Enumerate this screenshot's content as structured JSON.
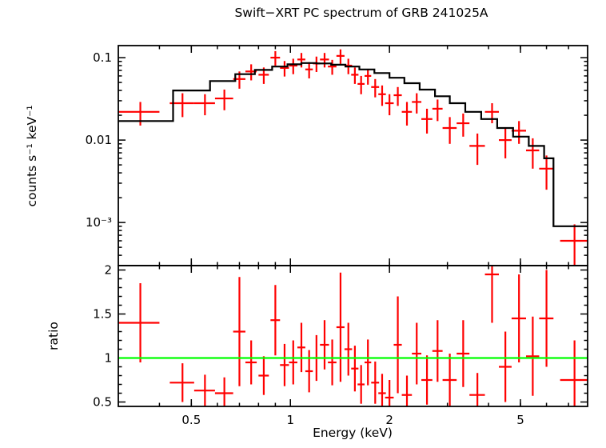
{
  "chart_data": [
    {
      "type": "scatter",
      "title": "Swift−XRT PC spectrum of GRB 241025A",
      "ylabel": "counts s⁻¹ keV⁻¹",
      "xscale": "log",
      "yscale": "log",
      "xlim": [
        0.3,
        8
      ],
      "ylim": [
        0.0003,
        0.14
      ],
      "grid": false,
      "legend": "none",
      "yticks": {
        "values": [
          0.001,
          0.01,
          0.1
        ],
        "labels": [
          "10⁻³",
          "0.01",
          "0.1"
        ]
      },
      "series": [
        {
          "name": "observed spectrum",
          "marker": "cross",
          "color": "#ff0000",
          "columns": [
            "x",
            "xerr",
            "y",
            "yerr"
          ],
          "points": [
            [
              0.35,
              0.05,
              0.022,
              0.007
            ],
            [
              0.47,
              0.04,
              0.028,
              0.009
            ],
            [
              0.55,
              0.04,
              0.028,
              0.008
            ],
            [
              0.63,
              0.04,
              0.032,
              0.009
            ],
            [
              0.7,
              0.03,
              0.055,
              0.013
            ],
            [
              0.76,
              0.03,
              0.068,
              0.015
            ],
            [
              0.83,
              0.03,
              0.062,
              0.014
            ],
            [
              0.9,
              0.03,
              0.1,
              0.02
            ],
            [
              0.96,
              0.03,
              0.075,
              0.016
            ],
            [
              1.02,
              0.03,
              0.08,
              0.017
            ],
            [
              1.08,
              0.03,
              0.095,
              0.019
            ],
            [
              1.14,
              0.03,
              0.072,
              0.016
            ],
            [
              1.2,
              0.03,
              0.085,
              0.018
            ],
            [
              1.27,
              0.04,
              0.095,
              0.019
            ],
            [
              1.34,
              0.04,
              0.078,
              0.016
            ],
            [
              1.42,
              0.04,
              0.105,
              0.021
            ],
            [
              1.5,
              0.04,
              0.08,
              0.017
            ],
            [
              1.57,
              0.04,
              0.062,
              0.014
            ],
            [
              1.64,
              0.04,
              0.048,
              0.012
            ],
            [
              1.72,
              0.04,
              0.06,
              0.013
            ],
            [
              1.81,
              0.05,
              0.044,
              0.011
            ],
            [
              1.9,
              0.05,
              0.036,
              0.01
            ],
            [
              2.0,
              0.06,
              0.028,
              0.008
            ],
            [
              2.12,
              0.06,
              0.035,
              0.009
            ],
            [
              2.26,
              0.08,
              0.022,
              0.007
            ],
            [
              2.42,
              0.08,
              0.029,
              0.008
            ],
            [
              2.6,
              0.1,
              0.018,
              0.006
            ],
            [
              2.8,
              0.1,
              0.024,
              0.007
            ],
            [
              3.05,
              0.15,
              0.014,
              0.005
            ],
            [
              3.35,
              0.15,
              0.016,
              0.005
            ],
            [
              3.7,
              0.2,
              0.0085,
              0.0035
            ],
            [
              4.1,
              0.2,
              0.022,
              0.006
            ],
            [
              4.5,
              0.2,
              0.01,
              0.004
            ],
            [
              4.95,
              0.25,
              0.013,
              0.004
            ],
            [
              5.45,
              0.25,
              0.0075,
              0.003
            ],
            [
              6.0,
              0.3,
              0.0045,
              0.002
            ],
            [
              7.3,
              0.7,
              0.0006,
              0.00035
            ]
          ]
        },
        {
          "name": "folded model",
          "type": "step",
          "color": "#000000",
          "edges": [
            0.3,
            0.44,
            0.57,
            0.68,
            0.78,
            0.88,
            0.98,
            1.08,
            1.2,
            1.33,
            1.47,
            1.62,
            1.8,
            2.0,
            2.22,
            2.47,
            2.75,
            3.05,
            3.4,
            3.8,
            4.25,
            4.75,
            5.3,
            5.9,
            6.3,
            8.0
          ],
          "values": [
            0.017,
            0.04,
            0.052,
            0.063,
            0.071,
            0.078,
            0.083,
            0.086,
            0.085,
            0.082,
            0.078,
            0.072,
            0.065,
            0.057,
            0.049,
            0.041,
            0.034,
            0.028,
            0.022,
            0.018,
            0.014,
            0.011,
            0.0085,
            0.006,
            0.0009
          ]
        }
      ]
    },
    {
      "type": "scatter",
      "xlabel": "Energy (keV)",
      "ylabel": "ratio",
      "xscale": "log",
      "yscale": "linear",
      "xlim": [
        0.3,
        8
      ],
      "ylim": [
        0.45,
        2.05
      ],
      "grid": false,
      "legend": "none",
      "xticks": {
        "values": [
          0.5,
          1,
          2,
          5
        ],
        "labels": [
          "0.5",
          "1",
          "2",
          "5"
        ]
      },
      "yticks": {
        "values": [
          0.5,
          1,
          1.5,
          2
        ],
        "labels": [
          "0.5",
          "1",
          "1.5",
          "2"
        ]
      },
      "series": [
        {
          "name": "data/model ratio",
          "marker": "cross",
          "color": "#ff0000",
          "columns": [
            "x",
            "xerr",
            "y",
            "yerr"
          ],
          "points": [
            [
              0.35,
              0.05,
              1.4,
              0.45
            ],
            [
              0.47,
              0.04,
              0.72,
              0.22
            ],
            [
              0.55,
              0.04,
              0.63,
              0.18
            ],
            [
              0.63,
              0.04,
              0.6,
              0.18
            ],
            [
              0.7,
              0.03,
              1.3,
              0.62
            ],
            [
              0.76,
              0.03,
              0.95,
              0.25
            ],
            [
              0.83,
              0.03,
              0.8,
              0.22
            ],
            [
              0.9,
              0.03,
              1.43,
              0.4
            ],
            [
              0.96,
              0.03,
              0.92,
              0.24
            ],
            [
              1.02,
              0.03,
              0.95,
              0.25
            ],
            [
              1.08,
              0.03,
              1.12,
              0.28
            ],
            [
              1.14,
              0.03,
              0.85,
              0.24
            ],
            [
              1.2,
              0.03,
              1.0,
              0.26
            ],
            [
              1.27,
              0.04,
              1.15,
              0.28
            ],
            [
              1.34,
              0.04,
              0.95,
              0.26
            ],
            [
              1.42,
              0.04,
              1.35,
              0.62
            ],
            [
              1.5,
              0.04,
              1.1,
              0.3
            ],
            [
              1.57,
              0.04,
              0.88,
              0.26
            ],
            [
              1.64,
              0.04,
              0.7,
              0.22
            ],
            [
              1.72,
              0.04,
              0.95,
              0.26
            ],
            [
              1.81,
              0.05,
              0.72,
              0.24
            ],
            [
              1.9,
              0.05,
              0.6,
              0.22
            ],
            [
              2.0,
              0.06,
              0.55,
              0.2
            ],
            [
              2.12,
              0.06,
              1.15,
              0.55
            ],
            [
              2.26,
              0.08,
              0.58,
              0.22
            ],
            [
              2.42,
              0.08,
              1.05,
              0.35
            ],
            [
              2.6,
              0.1,
              0.75,
              0.28
            ],
            [
              2.8,
              0.1,
              1.08,
              0.35
            ],
            [
              3.05,
              0.15,
              0.75,
              0.3
            ],
            [
              3.35,
              0.15,
              1.05,
              0.38
            ],
            [
              3.7,
              0.2,
              0.58,
              0.25
            ],
            [
              4.1,
              0.2,
              1.95,
              0.55
            ],
            [
              4.5,
              0.2,
              0.9,
              0.4
            ],
            [
              4.95,
              0.25,
              1.45,
              0.5
            ],
            [
              5.45,
              0.25,
              1.02,
              0.45
            ],
            [
              6.0,
              0.3,
              1.45,
              0.55
            ],
            [
              7.3,
              0.7,
              0.75,
              0.45
            ]
          ]
        },
        {
          "name": "unity",
          "type": "hline",
          "y": 1,
          "color": "#00ff00"
        }
      ]
    }
  ]
}
